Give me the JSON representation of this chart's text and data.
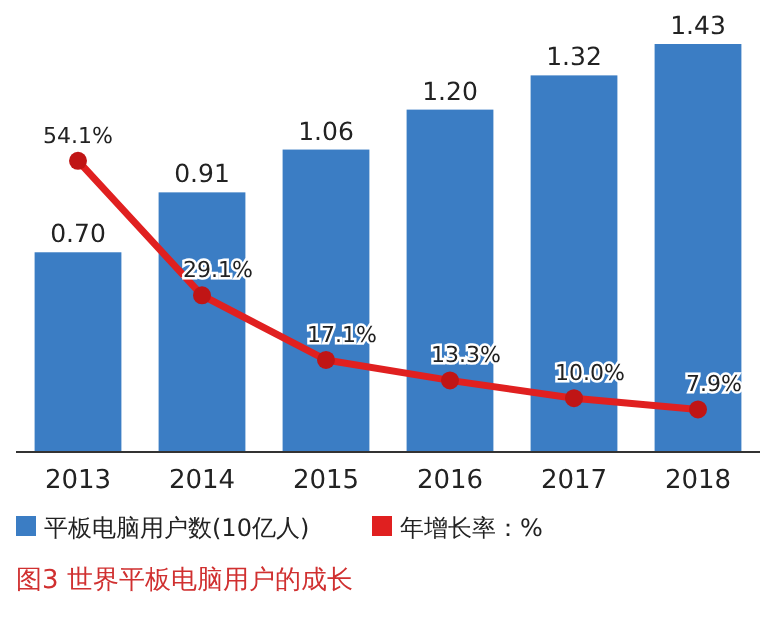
{
  "chart_data": {
    "type": "bar",
    "title": "图3  世界平板电脑用户的成长",
    "categories": [
      "2013",
      "2014",
      "2015",
      "2016",
      "2017",
      "2018"
    ],
    "series": [
      {
        "name": "平板电脑用户数(10亿人)",
        "color": "#3b7dc4",
        "values": [
          0.7,
          0.91,
          1.06,
          1.2,
          1.32,
          1.43
        ],
        "value_labels": [
          "0.70",
          "0.91",
          "1.06",
          "1.20",
          "1.32",
          "1.43"
        ]
      },
      {
        "name": "年增长率：%",
        "type": "line",
        "axis": "y2",
        "color": "#e02020",
        "values": [
          54.1,
          29.1,
          17.1,
          13.3,
          10.0,
          7.9
        ],
        "value_labels": [
          "54.1%",
          "29.1%",
          "17.1%",
          "13.3%",
          "10.0%",
          "7.9%"
        ]
      }
    ],
    "marker": "circle",
    "legend": "bottom"
  }
}
